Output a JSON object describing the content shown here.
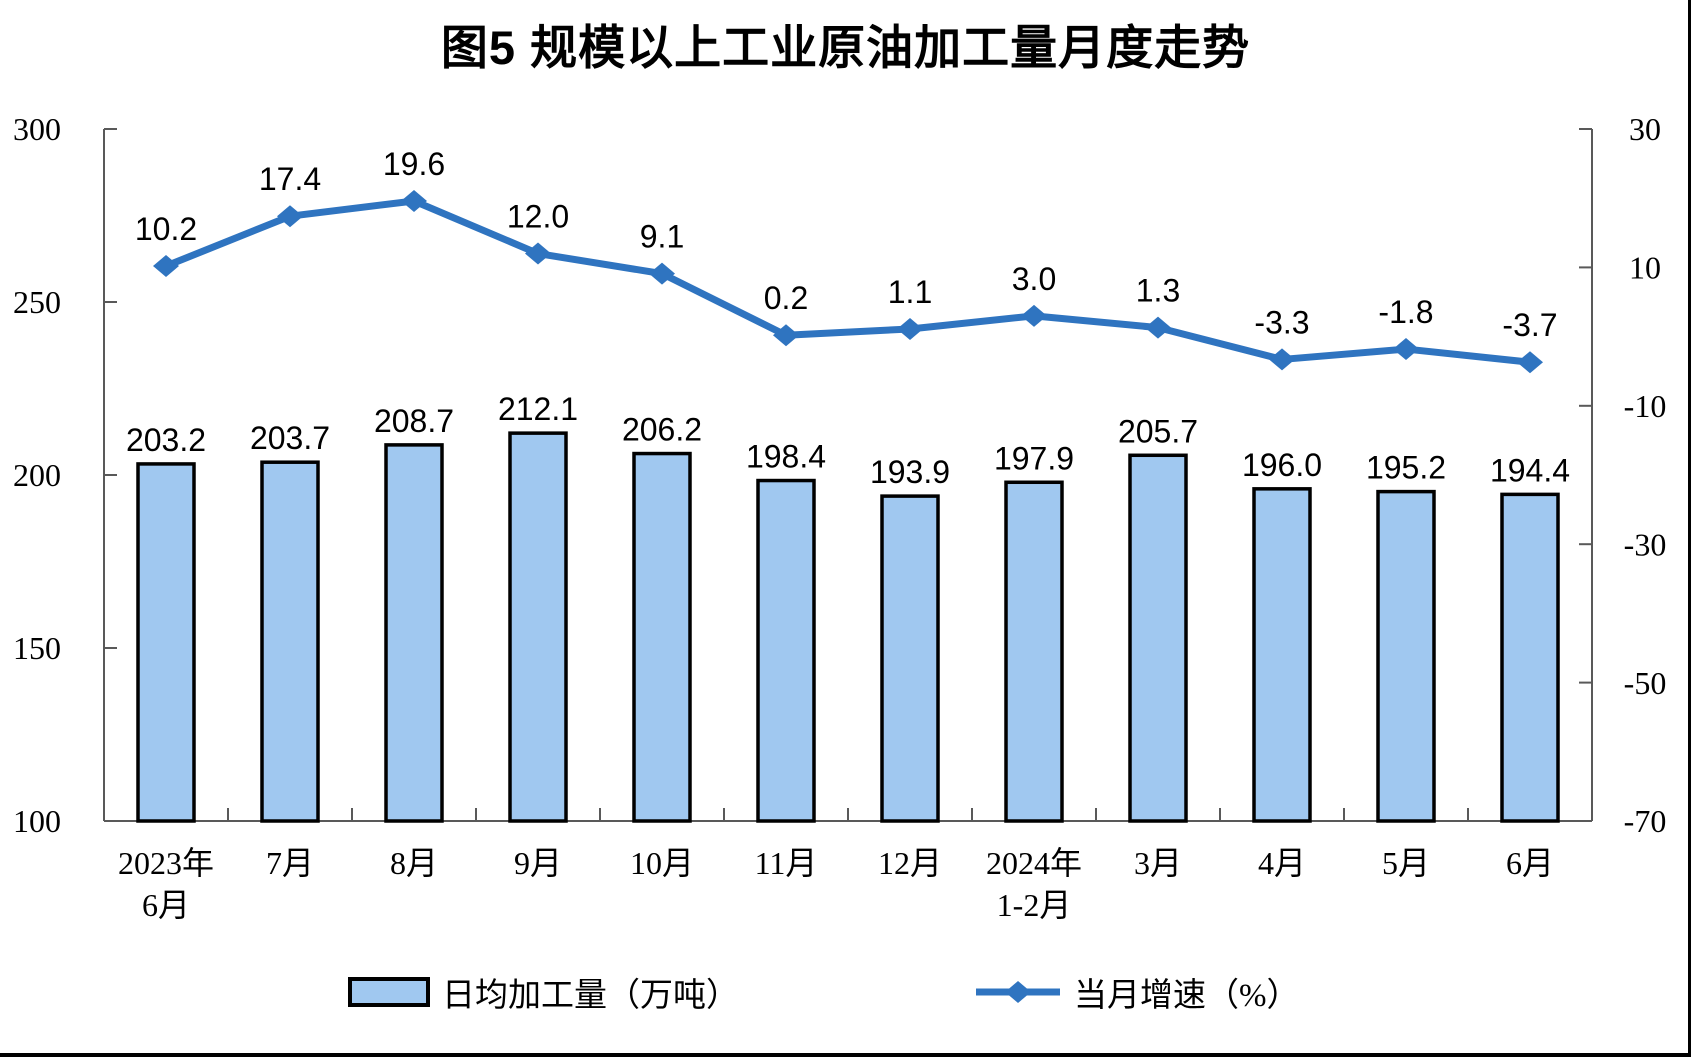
{
  "title": "图5 规模以上工业原油加工量月度走势",
  "legend": {
    "bar_label": "日均加工量（万吨）",
    "line_label": "当月增速（%）"
  },
  "colors": {
    "bar_fill": "#A0C8F0",
    "bar_stroke": "#000000",
    "line": "#2F74C0",
    "axis": "#595959",
    "text": "#000000"
  },
  "chart_data": {
    "type": "bar+line",
    "title": "图5 规模以上工业原油加工量月度走势",
    "categories": [
      [
        "2023年",
        "6月"
      ],
      [
        "7月"
      ],
      [
        "8月"
      ],
      [
        "9月"
      ],
      [
        "10月"
      ],
      [
        "11月"
      ],
      [
        "12月"
      ],
      [
        "2024年",
        "1-2月"
      ],
      [
        "3月"
      ],
      [
        "4月"
      ],
      [
        "5月"
      ],
      [
        "6月"
      ]
    ],
    "series": [
      {
        "name": "日均加工量（万吨）",
        "type": "bar",
        "axis": "left",
        "values": [
          203.2,
          203.7,
          208.7,
          212.1,
          206.2,
          198.4,
          193.9,
          197.9,
          205.7,
          196.0,
          195.2,
          194.4
        ],
        "fill": "#A0C8F0",
        "stroke": "#000000",
        "value_labels": [
          "203.2",
          "203.7",
          "208.7",
          "212.1",
          "206.2",
          "198.4",
          "193.9",
          "197.9",
          "205.7",
          "196.0",
          "195.2",
          "194.4"
        ]
      },
      {
        "name": "当月增速（%）",
        "type": "line",
        "axis": "right",
        "marker": "diamond",
        "values": [
          10.2,
          17.4,
          19.6,
          12.0,
          9.1,
          0.2,
          1.1,
          3.0,
          1.3,
          -3.3,
          -1.8,
          -3.7
        ],
        "color": "#2F74C0",
        "value_labels": [
          "10.2",
          "17.4",
          "19.6",
          "12.0",
          "9.1",
          "0.2",
          "1.1",
          "3.0",
          "1.3",
          "-3.3",
          "-1.8",
          "-3.7"
        ]
      }
    ],
    "left_axis": {
      "min": 100,
      "max": 300,
      "step": 50,
      "ticks": [
        100,
        150,
        200,
        250,
        300
      ]
    },
    "right_axis": {
      "min": -70,
      "max": 30,
      "step": 20,
      "ticks": [
        -70,
        -50,
        -30,
        -10,
        10,
        30
      ]
    },
    "grid": false,
    "legend_position": "bottom"
  }
}
